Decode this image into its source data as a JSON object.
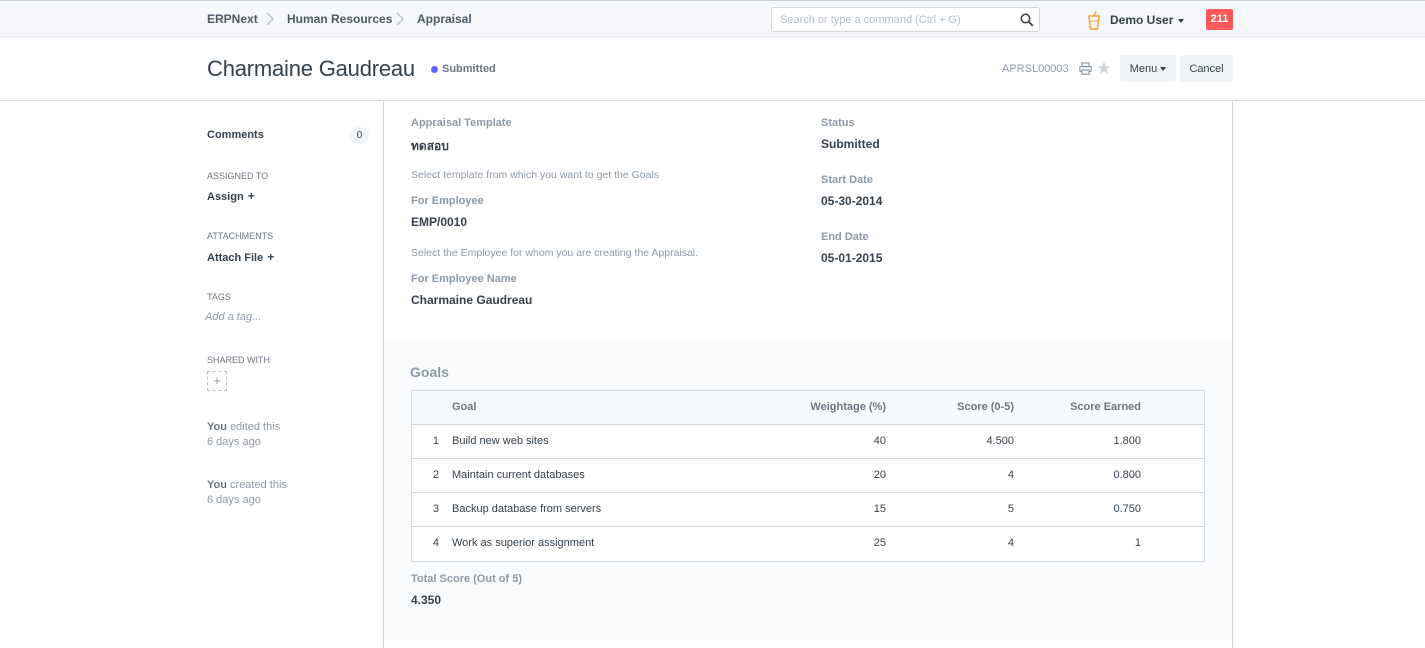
{
  "navbar": {
    "breadcrumbs": [
      "ERPNext",
      "Human Resources",
      "Appraisal"
    ],
    "search_placeholder": "Search or type a command (Ctrl + G)",
    "user_name": "Demo User",
    "notification_count": "211"
  },
  "header": {
    "title": "Charmaine Gaudreau",
    "status": "Submitted",
    "status_color": "#5e64ff",
    "doc_id": "APRSL00003",
    "menu_label": "Menu",
    "cancel_label": "Cancel"
  },
  "sidebar": {
    "comments_label": "Comments",
    "comments_count": "0",
    "assigned_to_label": "ASSIGNED TO",
    "assign_label": "Assign",
    "attachments_label": "ATTACHMENTS",
    "attach_label": "Attach File",
    "tags_label": "TAGS",
    "tag_placeholder": "Add a tag...",
    "shared_with_label": "SHARED WITH",
    "activity": [
      {
        "who": "You",
        "action": "edited this",
        "when": "6 days ago"
      },
      {
        "who": "You",
        "action": "created this",
        "when": "6 days ago"
      }
    ]
  },
  "form": {
    "appraisal_template_label": "Appraisal Template",
    "appraisal_template_value": "ทดสอบ",
    "appraisal_template_help": "Select template from which you want to get the Goals",
    "employee_label": "For Employee",
    "employee_value": "EMP/0010",
    "employee_help": "Select the Employee for whom you are creating the Appraisal.",
    "employee_name_label": "For Employee Name",
    "employee_name_value": "Charmaine Gaudreau",
    "status_label": "Status",
    "status_value": "Submitted",
    "start_date_label": "Start Date",
    "start_date_value": "05-30-2014",
    "end_date_label": "End Date",
    "end_date_value": "05-01-2015"
  },
  "goals": {
    "title": "Goals",
    "columns": [
      "Goal",
      "Weightage (%)",
      "Score (0-5)",
      "Score Earned"
    ],
    "rows": [
      {
        "idx": "1",
        "goal": "Build new web sites",
        "weightage": "40",
        "score": "4.500",
        "earned": "1.800"
      },
      {
        "idx": "2",
        "goal": "Maintain current databases",
        "weightage": "20",
        "score": "4",
        "earned": "0.800"
      },
      {
        "idx": "3",
        "goal": "Backup database from servers",
        "weightage": "15",
        "score": "5",
        "earned": "0.750"
      },
      {
        "idx": "4",
        "goal": "Work as superior assignment",
        "weightage": "25",
        "score": "4",
        "earned": "1"
      }
    ],
    "total_label": "Total Score (Out of 5)",
    "total_value": "4.350"
  }
}
